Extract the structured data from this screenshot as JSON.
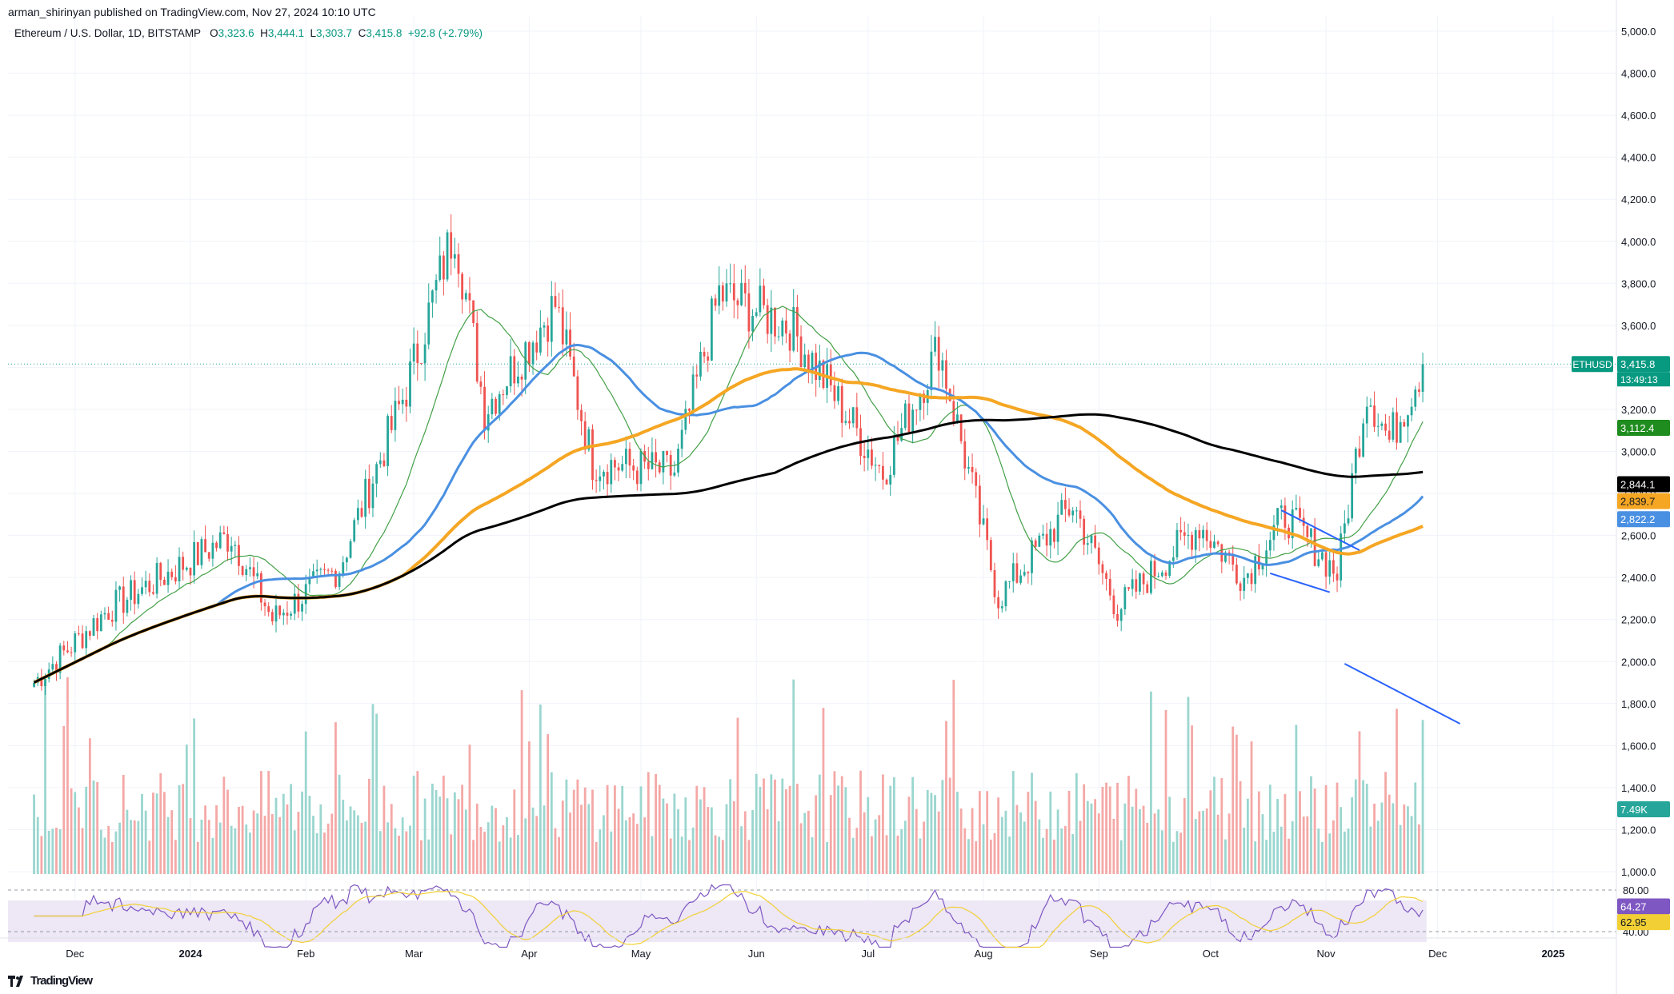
{
  "header": {
    "publisher_line": "arman_shirinyan published on TradingView.com, Nov 27, 2024 10:10 UTC"
  },
  "legend": {
    "symbol": "Ethereum / U.S. Dollar, 1D, BITSTAMP",
    "o_label": "O",
    "o_value": "3,323.6",
    "h_label": "H",
    "h_value": "3,444.1",
    "l_label": "L",
    "l_value": "3,303.7",
    "c_label": "C",
    "c_value": "3,415.8",
    "change": "+92.8 (+2.79%)"
  },
  "footer": {
    "brand": "TradingView"
  },
  "colors": {
    "up": "#26a69a",
    "down": "#ef5350",
    "ma_fast": "#43a047",
    "ma_blue": "#4a90e2",
    "ma_orange": "#f5a623",
    "ma_black": "#000000",
    "rsi": "#7e57c2",
    "rsi_ma": "#f2d035"
  },
  "chart_data": {
    "type": "candlestick",
    "title": "Ethereum / U.S. Dollar, 1D, BITSTAMP",
    "ylim": [
      1800,
      5000
    ],
    "price_ticks": [
      "5,000.0",
      "4,800.0",
      "4,600.0",
      "4,400.0",
      "4,200.0",
      "4,000.0",
      "3,800.0",
      "3,600.0",
      "3,400.0",
      "3,200.0",
      "3,000.0",
      "2,800.0",
      "2,600.0",
      "2,400.0",
      "2,200.0",
      "2,000.0",
      "1,800.0",
      "1,600.0",
      "1,400.0",
      "1,200.0",
      "1,000.0"
    ],
    "x_labels": [
      "Dec",
      "2024",
      "Feb",
      "Mar",
      "Apr",
      "May",
      "Jun",
      "Jul",
      "Aug",
      "Sep",
      "Oct",
      "Nov",
      "Dec",
      "2025"
    ],
    "price_key_points": [
      [
        "2023-11-20",
        1900
      ],
      [
        "2023-12-10",
        2250
      ],
      [
        "2024-01-12",
        2600
      ],
      [
        "2024-01-23",
        2200
      ],
      [
        "2024-02-10",
        2450
      ],
      [
        "2024-02-28",
        3300
      ],
      [
        "2024-03-12",
        4070
      ],
      [
        "2024-03-20",
        3200
      ],
      [
        "2024-04-08",
        3700
      ],
      [
        "2024-04-18",
        2950
      ],
      [
        "2024-05-10",
        2900
      ],
      [
        "2024-05-22",
        3750
      ],
      [
        "2024-06-10",
        3600
      ],
      [
        "2024-07-05",
        2900
      ],
      [
        "2024-07-20",
        3500
      ],
      [
        "2024-08-05",
        2300
      ],
      [
        "2024-08-25",
        2750
      ],
      [
        "2024-09-06",
        2250
      ],
      [
        "2024-09-28",
        2650
      ],
      [
        "2024-10-10",
        2400
      ],
      [
        "2024-10-21",
        2700
      ],
      [
        "2024-11-04",
        2420
      ],
      [
        "2024-11-12",
        3300
      ],
      [
        "2024-11-18",
        3050
      ],
      [
        "2024-11-27",
        3415.8
      ]
    ],
    "series": [
      {
        "name": "ETHUSD",
        "last": "3,415.8",
        "countdown": "13:49:13"
      },
      {
        "name": "",
        "last": "3,112.4"
      },
      {
        "name": "",
        "last": "2,844.1"
      },
      {
        "name": "",
        "last": "2,839.7"
      },
      {
        "name": "",
        "last": "2,822.2"
      }
    ],
    "volume_last": "7.49K",
    "rsi": {
      "ticks": [
        "80.00",
        "40.00"
      ],
      "value": "64.27",
      "ma_value": "62.95"
    }
  }
}
